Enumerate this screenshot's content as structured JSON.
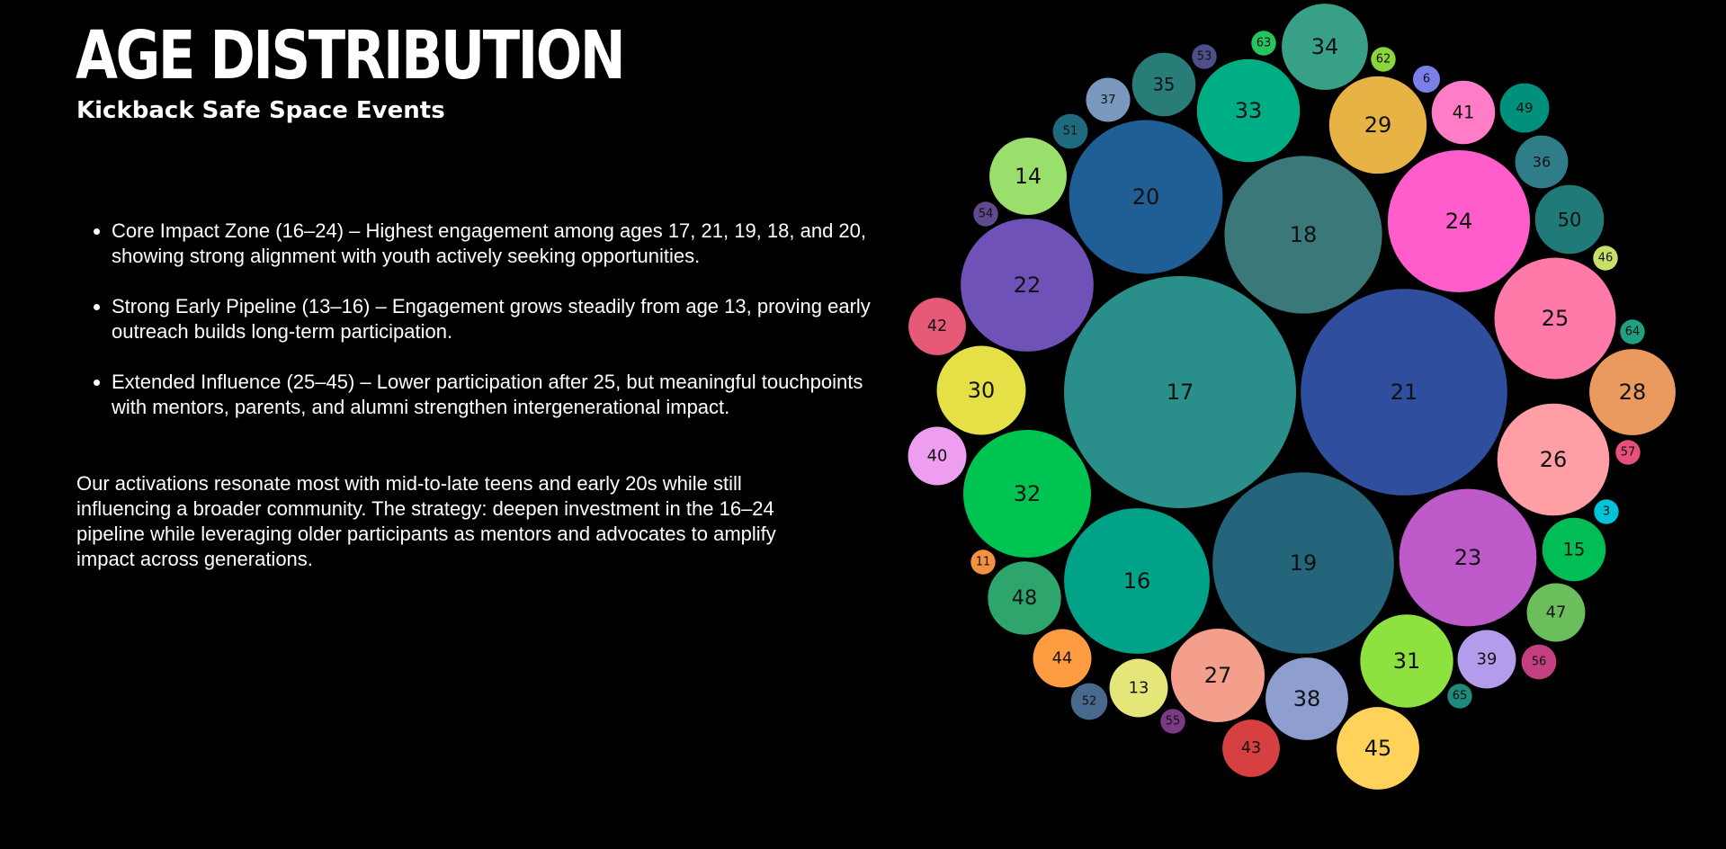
{
  "header": {
    "title": "AGE DISTRIBUTION",
    "subtitle": "Kickback Safe Space Events"
  },
  "insights": [
    "Core Impact Zone (16–24) – Highest engagement among ages 17, 21, 19, 18, and 20, showing strong alignment with youth actively seeking opportunities.",
    "Strong Early Pipeline (13–16) – Engagement grows steadily from age 13, proving early outreach builds long-term participation.",
    "Extended Influence (25–45) – Lower participation after 25, but meaningful touchpoints with mentors, parents, and alumni strengthen intergenerational impact."
  ],
  "summary": "Our activations resonate most with mid-to-late teens and early 20s while still influencing a broader community. The strategy: deepen investment in the 16–24 pipeline while leveraging older participants as mentors and advocates to amplify impact across generations.",
  "chart_data": {
    "type": "bubble",
    "title": "",
    "bubbles": [
      {
        "label": "17",
        "value": 44.2,
        "color": "#2a8f8a"
      },
      {
        "label": "21",
        "value": 35.0,
        "color": "#2f4f9e"
      },
      {
        "label": "19",
        "value": 27.0,
        "color": "#24657b"
      },
      {
        "label": "18",
        "value": 20.4,
        "color": "#3a787a"
      },
      {
        "label": "20",
        "value": 19.4,
        "color": "#1f5f96"
      },
      {
        "label": "16",
        "value": 17.4,
        "color": "#00a288"
      },
      {
        "label": "23",
        "value": 15.5,
        "color": "#bd59c9"
      },
      {
        "label": "24",
        "value": 16.6,
        "color": "#ff5ccc"
      },
      {
        "label": "22",
        "value": 14.5,
        "color": "#6f52b8"
      },
      {
        "label": "32",
        "value": 13.4,
        "color": "#00c451"
      },
      {
        "label": "25",
        "value": 12.1,
        "color": "#ff79a9"
      },
      {
        "label": "26",
        "value": 10.3,
        "color": "#ff9fa5"
      },
      {
        "label": "33",
        "value": 8.7,
        "color": "#00ae86"
      },
      {
        "label": "29",
        "value": 7.8,
        "color": "#e6b344"
      },
      {
        "label": "27",
        "value": 7.2,
        "color": "#f49e8c"
      },
      {
        "label": "31",
        "value": 7.1,
        "color": "#8ee23f"
      },
      {
        "label": "28",
        "value": 6.1,
        "color": "#ea9a5e"
      },
      {
        "label": "34",
        "value": 6.1,
        "color": "#38a087"
      },
      {
        "label": "38",
        "value": 5.6,
        "color": "#8f9ed1"
      },
      {
        "label": "30",
        "value": 6.5,
        "color": "#e5e045"
      },
      {
        "label": "45",
        "value": 5.6,
        "color": "#ffd25a"
      },
      {
        "label": "14",
        "value": 4.9,
        "color": "#9ade6c"
      },
      {
        "label": "50",
        "value": 3.9,
        "color": "#1f7a78"
      },
      {
        "label": "48",
        "value": 4.4,
        "color": "#2fa56e"
      },
      {
        "label": "15",
        "value": 3.3,
        "color": "#00bd55"
      },
      {
        "label": "41",
        "value": 3.3,
        "color": "#ff7dc7"
      },
      {
        "label": "47",
        "value": 2.8,
        "color": "#6cbe5c"
      },
      {
        "label": "39",
        "value": 2.8,
        "color": "#b49cec"
      },
      {
        "label": "13",
        "value": 2.8,
        "color": "#e5e67a"
      },
      {
        "label": "44",
        "value": 2.8,
        "color": "#ff9c42"
      },
      {
        "label": "42",
        "value": 2.7,
        "color": "#e65a78"
      },
      {
        "label": "40",
        "value": 2.8,
        "color": "#ee9ef0"
      },
      {
        "label": "35",
        "value": 3.3,
        "color": "#287d78"
      },
      {
        "label": "36",
        "value": 2.3,
        "color": "#2e7d89"
      },
      {
        "label": "43",
        "value": 2.7,
        "color": "#d64040"
      },
      {
        "label": "49",
        "value": 2.0,
        "color": "#00907c"
      },
      {
        "label": "37",
        "value": 1.6,
        "color": "#7a98bc"
      },
      {
        "label": "52",
        "value": 1.1,
        "color": "#486a8c"
      },
      {
        "label": "51",
        "value": 1.0,
        "color": "#206a80"
      },
      {
        "label": "56",
        "value": 1.0,
        "color": "#c43f82"
      },
      {
        "label": "6",
        "value": 0.6,
        "color": "#7b80e8"
      },
      {
        "label": "53",
        "value": 0.5,
        "color": "#4f4f8a"
      },
      {
        "label": "63",
        "value": 0.5,
        "color": "#27c45e"
      },
      {
        "label": "62",
        "value": 0.5,
        "color": "#8ad63a"
      },
      {
        "label": "54",
        "value": 0.5,
        "color": "#5f4a8e"
      },
      {
        "label": "46",
        "value": 0.5,
        "color": "#c7e06a"
      },
      {
        "label": "64",
        "value": 0.5,
        "color": "#20a080"
      },
      {
        "label": "57",
        "value": 0.5,
        "color": "#e6507a"
      },
      {
        "label": "3",
        "value": 0.5,
        "color": "#00c2d8"
      },
      {
        "label": "11",
        "value": 0.5,
        "color": "#f2923e"
      },
      {
        "label": "55",
        "value": 0.5,
        "color": "#7a3a86"
      },
      {
        "label": "65",
        "value": 0.5,
        "color": "#1f8a7a"
      }
    ]
  }
}
